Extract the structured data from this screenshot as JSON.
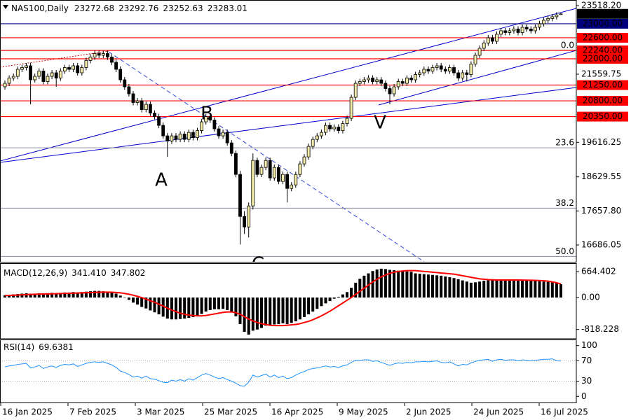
{
  "chart_data": [
    {
      "type": "candlestick",
      "title": "NAS100,Daily",
      "up_color": "#f3eca8",
      "down_color": "#000000",
      "ylim": [
        16246,
        23638
      ],
      "yticks": [
        {
          "value": 23518.2,
          "label": "23518.20"
        },
        21559.75,
        19616.25,
        18629.55,
        {
          "value": 17657.8,
          "label": "17657.80"
        },
        16686.05
      ],
      "levels": [
        {
          "value": 23000,
          "label": "23000.00",
          "color": "#00007f"
        },
        {
          "value": 22600,
          "label": "22600.00",
          "color": "#ff0000"
        },
        {
          "value": 22240,
          "label": "22240.00",
          "color": "#ff0000"
        },
        {
          "value": 22000,
          "label": "22000.00",
          "color": "#ff0000"
        },
        {
          "value": 21250,
          "label": "21250.00",
          "color": "#ff0000"
        },
        {
          "value": 20800,
          "label": "20800.00",
          "color": "#ff0000"
        },
        {
          "value": 20350,
          "label": "20350.00",
          "color": "#ff0000"
        }
      ],
      "fibonacci": [
        {
          "label": "0.0",
          "price": 22244
        },
        {
          "label": "23.6",
          "price": 19460
        },
        {
          "label": "38.2",
          "price": 17738
        },
        {
          "label": "50.0",
          "price": 16358
        }
      ],
      "annotations": [
        "A",
        "B",
        "C",
        "V"
      ],
      "dates": [
        "16 Jan 2025",
        "7 Feb 2025",
        "3 Mar 2025",
        "25 Mar 2025",
        "16 Apr 2025",
        "9 May 2025",
        "2 Jun 2025",
        "24 Jun 2025",
        "16 Jul 2025"
      ],
      "ohlc": [
        [
          21200,
          21380,
          21120,
          21300
        ],
        [
          21300,
          21530,
          21220,
          21450
        ],
        [
          21450,
          21580,
          21370,
          21500
        ],
        [
          21500,
          21780,
          21420,
          21700
        ],
        [
          21700,
          21830,
          21620,
          21750
        ],
        [
          21750,
          21880,
          21670,
          21800
        ],
        [
          21800,
          21880,
          20700,
          21400
        ],
        [
          21400,
          21580,
          21320,
          21500
        ],
        [
          21500,
          21730,
          21420,
          21650
        ],
        [
          21650,
          21730,
          21270,
          21350
        ],
        [
          21350,
          21580,
          21270,
          21500
        ],
        [
          21500,
          21680,
          21420,
          21600
        ],
        [
          21600,
          21680,
          21200,
          21450
        ],
        [
          21450,
          21730,
          21370,
          21650
        ],
        [
          21650,
          21830,
          21570,
          21750
        ],
        [
          21750,
          21830,
          21620,
          21700
        ],
        [
          21700,
          21880,
          21620,
          21800
        ],
        [
          21800,
          21880,
          21520,
          21600
        ],
        [
          21600,
          21830,
          21520,
          21750
        ],
        [
          21750,
          22030,
          21670,
          21950
        ],
        [
          21950,
          22130,
          21870,
          22050
        ],
        [
          22050,
          22230,
          21970,
          22150
        ],
        [
          22150,
          22230,
          22020,
          22100
        ],
        [
          22100,
          22230,
          22020,
          22150
        ],
        [
          22150,
          22230,
          21970,
          22050
        ],
        [
          22050,
          22130,
          21820,
          21900
        ],
        [
          21900,
          21980,
          21620,
          21700
        ],
        [
          21700,
          21780,
          21320,
          21400
        ],
        [
          21400,
          21480,
          21120,
          21200
        ],
        [
          21200,
          21280,
          20920,
          21000
        ],
        [
          21000,
          21080,
          20670,
          20750
        ],
        [
          20750,
          20880,
          20670,
          20800
        ],
        [
          20800,
          20880,
          20470,
          20550
        ],
        [
          20550,
          20780,
          20470,
          20700
        ],
        [
          20700,
          20780,
          20370,
          20450
        ],
        [
          20450,
          20530,
          20270,
          20350
        ],
        [
          20350,
          20430,
          20020,
          20100
        ],
        [
          20100,
          20180,
          19720,
          19800
        ],
        [
          19800,
          19880,
          19200,
          19650
        ],
        [
          19650,
          19880,
          19570,
          19800
        ],
        [
          19800,
          19880,
          19620,
          19700
        ],
        [
          19700,
          19930,
          19620,
          19850
        ],
        [
          19850,
          19930,
          19620,
          19700
        ],
        [
          19700,
          19980,
          19620,
          19900
        ],
        [
          19900,
          19980,
          19670,
          19750
        ],
        [
          19750,
          20030,
          19670,
          19950
        ],
        [
          19950,
          20280,
          19870,
          20200
        ],
        [
          20200,
          20430,
          20120,
          20350
        ],
        [
          20350,
          20430,
          20170,
          20250
        ],
        [
          20250,
          20330,
          19920,
          20000
        ],
        [
          20000,
          20080,
          19720,
          19800
        ],
        [
          19800,
          19980,
          19720,
          19900
        ],
        [
          19900,
          19980,
          19520,
          19600
        ],
        [
          19600,
          19680,
          19220,
          19300
        ],
        [
          19300,
          19380,
          18620,
          18700
        ],
        [
          18700,
          18800,
          16700,
          17500
        ],
        [
          17500,
          17650,
          17000,
          17200
        ],
        [
          17200,
          17900,
          16900,
          17800
        ],
        [
          17800,
          19300,
          17700,
          19100
        ],
        [
          19100,
          19180,
          18620,
          18700
        ],
        [
          18700,
          18980,
          18620,
          18900
        ],
        [
          18900,
          19180,
          18820,
          19100
        ],
        [
          19100,
          19180,
          18520,
          18600
        ],
        [
          18600,
          18980,
          18520,
          18900
        ],
        [
          18900,
          18980,
          18420,
          18500
        ],
        [
          18500,
          18780,
          18420,
          18700
        ],
        [
          18700,
          18780,
          17900,
          18300
        ],
        [
          18300,
          18480,
          18220,
          18400
        ],
        [
          18400,
          18780,
          18320,
          18700
        ],
        [
          18700,
          19080,
          18620,
          19000
        ],
        [
          19000,
          19280,
          18920,
          19200
        ],
        [
          19200,
          19580,
          19120,
          19500
        ],
        [
          19500,
          19780,
          19420,
          19700
        ],
        [
          19700,
          19880,
          19620,
          19800
        ],
        [
          19800,
          19980,
          19720,
          19900
        ],
        [
          19900,
          20180,
          19820,
          20100
        ],
        [
          20100,
          20180,
          19920,
          20000
        ],
        [
          20000,
          20130,
          19920,
          20050
        ],
        [
          20050,
          20130,
          19870,
          19950
        ],
        [
          19950,
          20230,
          19870,
          20150
        ],
        [
          20150,
          20380,
          20070,
          20300
        ],
        [
          20300,
          20980,
          20220,
          20900
        ],
        [
          20900,
          21380,
          20820,
          21300
        ],
        [
          21300,
          21430,
          21220,
          21350
        ],
        [
          21350,
          21480,
          21270,
          21400
        ],
        [
          21400,
          21530,
          21320,
          21450
        ],
        [
          21450,
          21530,
          21270,
          21350
        ],
        [
          21350,
          21480,
          21270,
          21400
        ],
        [
          21400,
          21480,
          21220,
          21300
        ],
        [
          21300,
          21380,
          21070,
          21150
        ],
        [
          21150,
          21230,
          20700,
          21000
        ],
        [
          21000,
          21280,
          20920,
          21200
        ],
        [
          21200,
          21430,
          21120,
          21350
        ],
        [
          21350,
          21430,
          21220,
          21300
        ],
        [
          21300,
          21530,
          21220,
          21450
        ],
        [
          21450,
          21530,
          21320,
          21400
        ],
        [
          21400,
          21630,
          21320,
          21550
        ],
        [
          21550,
          21680,
          21470,
          21600
        ],
        [
          21600,
          21780,
          21520,
          21700
        ],
        [
          21700,
          21780,
          21570,
          21650
        ],
        [
          21650,
          21830,
          21570,
          21750
        ],
        [
          21750,
          21880,
          21670,
          21800
        ],
        [
          21800,
          21880,
          21620,
          21700
        ],
        [
          21700,
          21780,
          21570,
          21650
        ],
        [
          21650,
          21830,
          21570,
          21750
        ],
        [
          21750,
          21830,
          21520,
          21600
        ],
        [
          21600,
          21680,
          21370,
          21450
        ],
        [
          21450,
          21680,
          21370,
          21600
        ],
        [
          21600,
          21680,
          21350,
          21550
        ],
        [
          21550,
          21930,
          21470,
          21850
        ],
        [
          21850,
          22180,
          21770,
          22100
        ],
        [
          22100,
          22380,
          22020,
          22300
        ],
        [
          22300,
          22530,
          22220,
          22450
        ],
        [
          22450,
          22680,
          22370,
          22600
        ],
        [
          22600,
          22680,
          22420,
          22500
        ],
        [
          22500,
          22780,
          22420,
          22700
        ],
        [
          22700,
          22880,
          22620,
          22800
        ],
        [
          22800,
          22880,
          22670,
          22750
        ],
        [
          22750,
          22880,
          22670,
          22800
        ],
        [
          22800,
          22930,
          22720,
          22850
        ],
        [
          22850,
          22930,
          22670,
          22750
        ],
        [
          22750,
          22980,
          22670,
          22900
        ],
        [
          22900,
          22980,
          22770,
          22850
        ],
        [
          22850,
          22930,
          22720,
          22800
        ],
        [
          22800,
          22980,
          22720,
          22900
        ],
        [
          22900,
          23080,
          22820,
          23000
        ],
        [
          23000,
          23180,
          22920,
          23100
        ],
        [
          23100,
          23230,
          23020,
          23150
        ],
        [
          23150,
          23280,
          23070,
          23200
        ],
        [
          23200,
          23330,
          23120,
          23250
        ],
        [
          23272.68,
          23292.76,
          23252.63,
          23283.01
        ]
      ]
    },
    {
      "type": "macd",
      "title": "MACD(12,26,9)",
      "readout": [
        "341.410",
        "347.802"
      ],
      "ylim": [
        -1040,
        845
      ],
      "yticks": [
        664.402,
        {
          "value": 0,
          "label": "0.00"
        },
        -818.228
      ],
      "histogram": {
        "color": "#000000",
        "values": [
          60,
          70,
          80,
          90,
          100,
          110,
          100,
          100,
          110,
          100,
          110,
          120,
          110,
          120,
          130,
          130,
          140,
          130,
          140,
          150,
          160,
          170,
          170,
          160,
          150,
          130,
          100,
          50,
          0,
          -60,
          -130,
          -180,
          -240,
          -280,
          -330,
          -380,
          -430,
          -490,
          -540,
          -560,
          -560,
          -550,
          -540,
          -520,
          -500,
          -470,
          -420,
          -360,
          -320,
          -300,
          -300,
          -290,
          -320,
          -380,
          -480,
          -680,
          -880,
          -950,
          -850,
          -820,
          -780,
          -720,
          -720,
          -690,
          -680,
          -660,
          -680,
          -650,
          -610,
          -560,
          -500,
          -430,
          -360,
          -290,
          -220,
          -150,
          -90,
          -30,
          20,
          80,
          140,
          250,
          380,
          480,
          560,
          620,
          680,
          720,
          740,
          730,
          710,
          700,
          690,
          680,
          670,
          660,
          620,
          610,
          600,
          590,
          580,
          570,
          560,
          540,
          520,
          500,
          470,
          440,
          410,
          380,
          390,
          410,
          430,
          440,
          450,
          460,
          460,
          460,
          450,
          450,
          440,
          440,
          440,
          430,
          430,
          420,
          410,
          400,
          390,
          380,
          341.41
        ]
      },
      "signal": {
        "color": "#ff0000",
        "values": [
          50,
          55,
          60,
          65,
          70,
          75,
          80,
          85,
          88,
          90,
          93,
          96,
          100,
          103,
          106,
          110,
          113,
          116,
          120,
          124,
          128,
          132,
          136,
          138,
          138,
          136,
          130,
          120,
          105,
          85,
          60,
          30,
          0,
          -40,
          -80,
          -120,
          -170,
          -220,
          -270,
          -320,
          -360,
          -400,
          -430,
          -450,
          -460,
          -470,
          -470,
          -460,
          -440,
          -420,
          -400,
          -380,
          -370,
          -370,
          -390,
          -430,
          -490,
          -550,
          -600,
          -640,
          -670,
          -690,
          -710,
          -720,
          -720,
          -720,
          -710,
          -700,
          -690,
          -670,
          -640,
          -610,
          -570,
          -520,
          -470,
          -410,
          -350,
          -280,
          -210,
          -140,
          -70,
          0,
          80,
          160,
          240,
          320,
          400,
          470,
          530,
          580,
          620,
          650,
          670,
          680,
          690,
          690,
          690,
          680,
          670,
          660,
          650,
          640,
          630,
          620,
          610,
          600,
          580,
          560,
          540,
          520,
          500,
          480,
          470,
          460,
          455,
          450,
          450,
          450,
          450,
          450,
          450,
          448,
          446,
          444,
          440,
          436,
          430,
          420,
          400,
          380,
          347.802
        ]
      }
    },
    {
      "type": "line",
      "title": "RSI(14)",
      "color": "#1e90ff",
      "ylim": [
        -12,
        112
      ],
      "yticks": [
        100,
        70,
        30,
        0
      ],
      "values": [
        58,
        60,
        61,
        63,
        64,
        65,
        56,
        58,
        61,
        55,
        58,
        60,
        57,
        61,
        63,
        62,
        64,
        59,
        62,
        65,
        67,
        68,
        67,
        68,
        65,
        62,
        57,
        50,
        47,
        43,
        38,
        40,
        36,
        40,
        35,
        34,
        31,
        28,
        27,
        32,
        30,
        33,
        30,
        35,
        32,
        37,
        42,
        45,
        42,
        38,
        35,
        37,
        33,
        30,
        26,
        21,
        20,
        28,
        42,
        38,
        41,
        44,
        38,
        42,
        37,
        40,
        35,
        37,
        42,
        46,
        49,
        53,
        55,
        56,
        58,
        60,
        58,
        59,
        57,
        60,
        62,
        67,
        71,
        71,
        72,
        72,
        69,
        70,
        67,
        64,
        61,
        64,
        66,
        65,
        67,
        66,
        68,
        68,
        69,
        68,
        69,
        70,
        67,
        66,
        68,
        64,
        60,
        63,
        62,
        66,
        69,
        71,
        72,
        73,
        69,
        72,
        73,
        71,
        72,
        72,
        70,
        72,
        71,
        70,
        71,
        72,
        73,
        73,
        74,
        70,
        69.6381
      ]
    }
  ]
}
